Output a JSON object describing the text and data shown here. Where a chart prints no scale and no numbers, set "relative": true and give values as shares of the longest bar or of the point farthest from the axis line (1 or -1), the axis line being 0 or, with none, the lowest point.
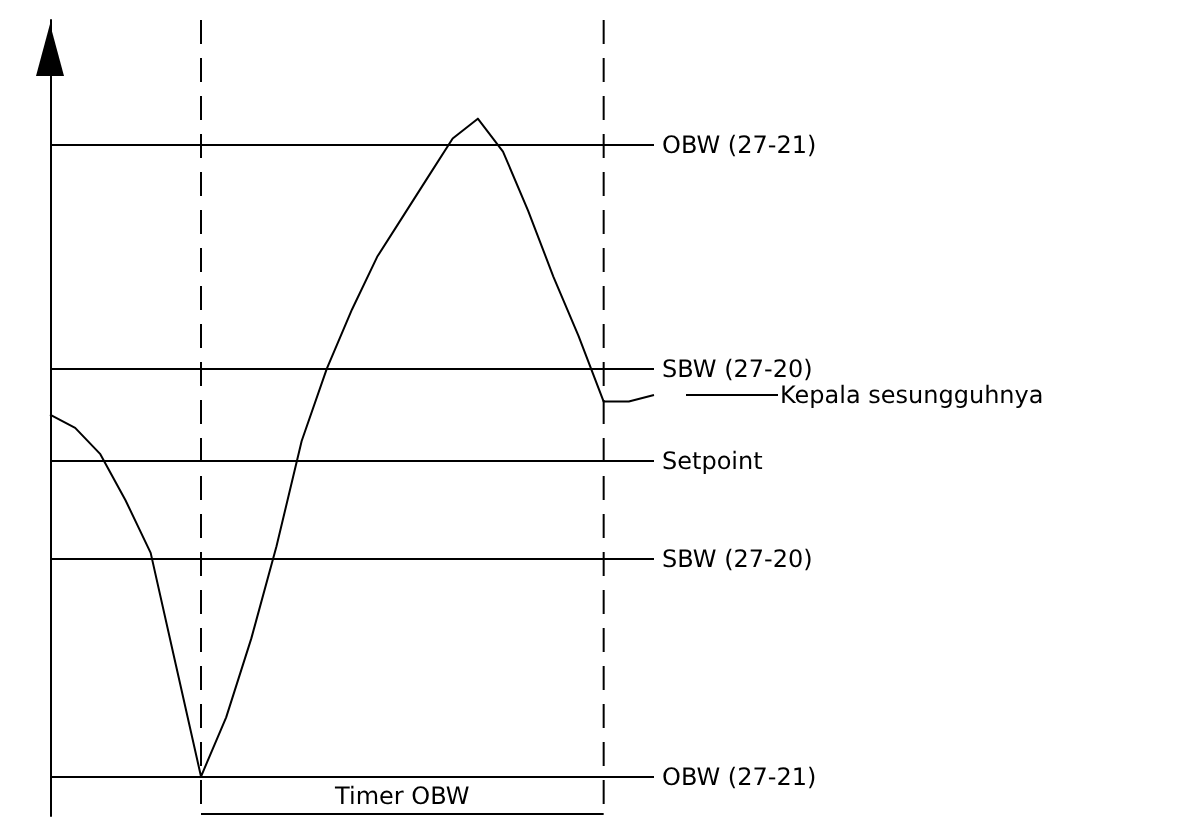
{
  "chart_data": {
    "type": "line",
    "relative": true,
    "grid": false,
    "line_style": "solid",
    "categories": [
      null,
      null,
      null,
      null,
      null,
      null,
      null,
      null,
      null,
      null,
      null,
      null,
      null,
      null,
      null,
      null,
      null,
      null,
      null,
      null,
      null,
      null,
      null,
      null,
      null
    ],
    "series": [
      {
        "color": "#000000",
        "values": [
          0.55,
          0.53,
          0.49,
          0.42,
          0.34,
          0.17,
          0,
          0.09,
          0.21,
          0.35,
          0.51,
          0.62,
          0.71,
          0.79,
          0.85,
          0.91,
          0.97,
          1,
          0.95,
          0.86,
          0.76,
          0.67,
          0.57,
          0.57,
          0.58
        ]
      }
    ],
    "ref_lines": [
      {
        "axis": "y",
        "value": 0.96,
        "label": "OBW (27-21)"
      },
      {
        "axis": "y",
        "value": 0.62,
        "label": "SBW (27-20)"
      },
      {
        "axis": "y",
        "value": 0.48,
        "label": "Setpoint"
      },
      {
        "axis": "y",
        "value": 0.33,
        "label": "SBW (27-20)"
      },
      {
        "axis": "y",
        "value": 0,
        "label": "OBW (27-21)"
      }
    ],
    "annotations": [
      "Kepala sesungguhnya",
      "Timer OBW"
    ]
  }
}
